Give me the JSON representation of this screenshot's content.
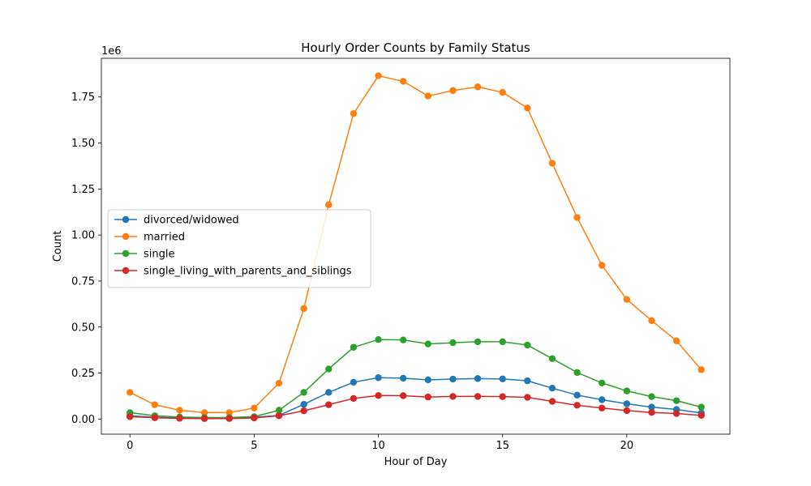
{
  "chart_data": {
    "type": "line",
    "title": "Hourly Order Counts by Family Status",
    "xlabel": "Hour of Day",
    "ylabel": "Count",
    "y_scale_label": "1e6",
    "y_multiplier": 1000000,
    "xlim": [
      -1.15,
      24.15
    ],
    "ylim": [
      -0.082,
      1.96
    ],
    "x_ticks": [
      0,
      5,
      10,
      15,
      20
    ],
    "y_ticks": [
      0.0,
      0.25,
      0.5,
      0.75,
      1.0,
      1.25,
      1.5,
      1.75
    ],
    "y_tick_labels": [
      "0.00",
      "0.25",
      "0.50",
      "0.75",
      "1.00",
      "1.25",
      "1.50",
      "1.75"
    ],
    "grid": false,
    "legend_position": "center-left",
    "x": [
      0,
      1,
      2,
      3,
      4,
      5,
      6,
      7,
      8,
      9,
      10,
      11,
      12,
      13,
      14,
      15,
      16,
      17,
      18,
      19,
      20,
      21,
      22,
      23
    ],
    "series": [
      {
        "name": "divorced/widowed",
        "color": "#1f77b4",
        "values": [
          0.018,
          0.01,
          0.006,
          0.004,
          0.005,
          0.01,
          0.02,
          0.08,
          0.145,
          0.2,
          0.225,
          0.222,
          0.213,
          0.217,
          0.22,
          0.218,
          0.208,
          0.168,
          0.13,
          0.105,
          0.083,
          0.065,
          0.052,
          0.033
        ]
      },
      {
        "name": "married",
        "color": "#ff7f0e",
        "values": [
          0.145,
          0.078,
          0.048,
          0.035,
          0.035,
          0.06,
          0.195,
          0.6,
          1.165,
          1.66,
          1.865,
          1.835,
          1.755,
          1.785,
          1.805,
          1.775,
          1.69,
          1.39,
          1.095,
          0.835,
          0.65,
          0.535,
          0.425,
          0.268
        ]
      },
      {
        "name": "single",
        "color": "#2ca02c",
        "values": [
          0.035,
          0.018,
          0.011,
          0.008,
          0.008,
          0.013,
          0.048,
          0.145,
          0.272,
          0.39,
          0.432,
          0.43,
          0.408,
          0.415,
          0.42,
          0.42,
          0.402,
          0.328,
          0.253,
          0.196,
          0.153,
          0.122,
          0.1,
          0.065
        ]
      },
      {
        "name": "single_living_with_parents_and_siblings",
        "color": "#d62728",
        "values": [
          0.013,
          0.007,
          0.004,
          0.003,
          0.003,
          0.006,
          0.018,
          0.045,
          0.078,
          0.112,
          0.128,
          0.127,
          0.12,
          0.123,
          0.123,
          0.122,
          0.118,
          0.096,
          0.075,
          0.06,
          0.046,
          0.036,
          0.03,
          0.02
        ]
      }
    ]
  }
}
